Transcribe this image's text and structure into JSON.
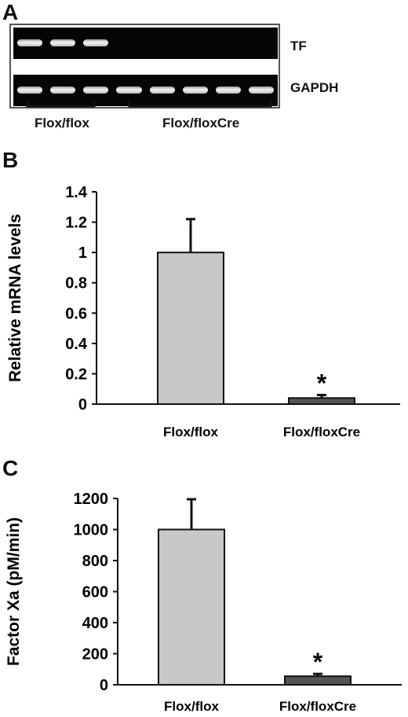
{
  "panel_a": {
    "letter": "A",
    "row_labels": {
      "tf": "TF",
      "gapdh": "GAPDH"
    },
    "group_labels": {
      "flox": "Flox/flox",
      "cre": "Flox/floxCre"
    },
    "tf_bands": [
      1,
      1,
      1,
      0,
      0,
      0,
      0,
      0
    ],
    "gapdh_bands": [
      1,
      1,
      1,
      1,
      1,
      1,
      1,
      1
    ]
  },
  "chart_data": [
    {
      "panel_letter": "B",
      "type": "bar",
      "categories": [
        "Flox/flox",
        "Flox/floxCre"
      ],
      "values": [
        1.0,
        0.04
      ],
      "errors": [
        0.22,
        0.02
      ],
      "significance": [
        "",
        "*"
      ],
      "bar_colors": [
        "#c8c8c8",
        "#555555"
      ],
      "title": "",
      "xlabel": "",
      "ylabel": "Relative mRNA levels",
      "ylim": [
        0,
        1.4
      ],
      "yticks": [
        0,
        0.2,
        0.4,
        0.6,
        0.8,
        1,
        1.2,
        1.4
      ],
      "ytick_labels": [
        "0",
        "0.2",
        "0.4",
        "0.6",
        "0.8",
        "1",
        "1.2",
        "1.4"
      ],
      "grid": false
    },
    {
      "panel_letter": "C",
      "type": "bar",
      "categories": [
        "Flox/flox",
        "Flox/floxCre"
      ],
      "values": [
        1000,
        55
      ],
      "errors": [
        195,
        15
      ],
      "significance": [
        "",
        "*"
      ],
      "bar_colors": [
        "#c8c8c8",
        "#555555"
      ],
      "title": "",
      "xlabel": "",
      "ylabel": "Factor Xa (pM/min)",
      "ylim": [
        0,
        1200
      ],
      "yticks": [
        0,
        200,
        400,
        600,
        800,
        1000,
        1200
      ],
      "ytick_labels": [
        "0",
        "200",
        "400",
        "600",
        "800",
        "1000",
        "1200"
      ],
      "grid": false
    }
  ]
}
